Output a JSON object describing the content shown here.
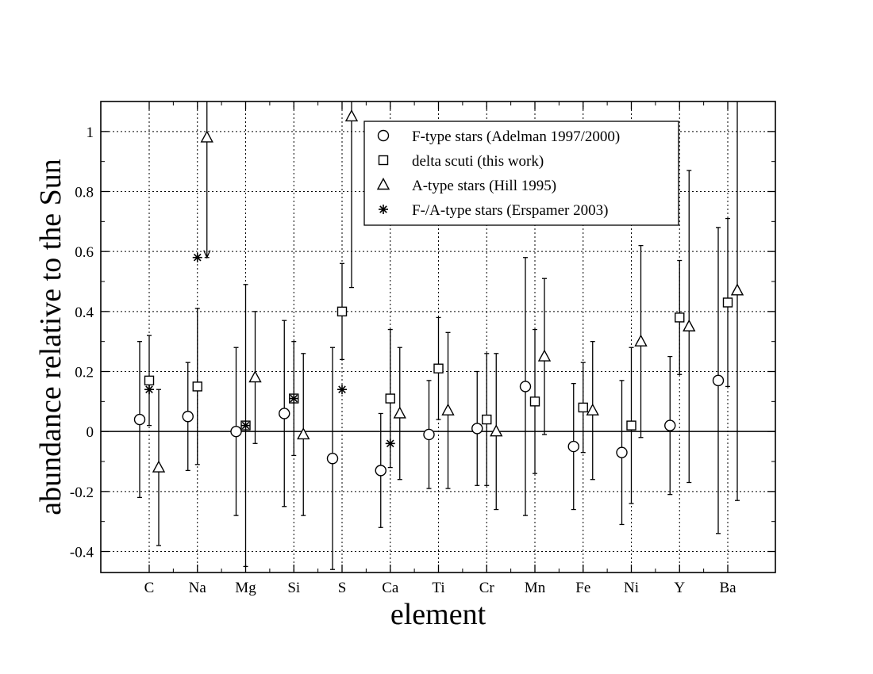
{
  "chart_data": {
    "type": "scatter",
    "xlabel": "element",
    "ylabel": "abundance relative to the Sun",
    "categories": [
      "C",
      "Na",
      "Mg",
      "Si",
      "S",
      "Ca",
      "Ti",
      "Cr",
      "Mn",
      "Fe",
      "Ni",
      "Y",
      "Ba"
    ],
    "ylim": [
      -0.47,
      1.1
    ],
    "yticks": [
      -0.4,
      -0.2,
      0,
      0.2,
      0.4,
      0.6,
      0.8,
      1
    ],
    "ytick_labels": [
      "-0.4",
      "-0.2",
      "0",
      "0.2",
      "0.4",
      "0.6",
      "0.8",
      "1"
    ],
    "grid": true,
    "zero_line": true,
    "legend_position": "top-right",
    "series": [
      {
        "name": "F-type stars (Adelman 1997/2000)",
        "marker": "circle",
        "offset": -0.2,
        "points": [
          {
            "category": "C",
            "y": 0.04,
            "ylo": -0.22,
            "yhi": 0.3
          },
          {
            "category": "Na",
            "y": 0.05,
            "ylo": -0.13,
            "yhi": 0.23
          },
          {
            "category": "Mg",
            "y": 0.0,
            "ylo": -0.28,
            "yhi": 0.28
          },
          {
            "category": "Si",
            "y": 0.06,
            "ylo": -0.25,
            "yhi": 0.37
          },
          {
            "category": "S",
            "y": -0.09,
            "ylo": -0.46,
            "yhi": 0.28
          },
          {
            "category": "Ca",
            "y": -0.13,
            "ylo": -0.32,
            "yhi": 0.06
          },
          {
            "category": "Ti",
            "y": -0.01,
            "ylo": -0.19,
            "yhi": 0.17
          },
          {
            "category": "Cr",
            "y": 0.01,
            "ylo": -0.18,
            "yhi": 0.2
          },
          {
            "category": "Mn",
            "y": 0.15,
            "ylo": -0.28,
            "yhi": 0.58
          },
          {
            "category": "Fe",
            "y": -0.05,
            "ylo": -0.26,
            "yhi": 0.16
          },
          {
            "category": "Ni",
            "y": -0.07,
            "ylo": -0.31,
            "yhi": 0.17
          },
          {
            "category": "Y",
            "y": 0.02,
            "ylo": -0.21,
            "yhi": 0.25
          },
          {
            "category": "Ba",
            "y": 0.17,
            "ylo": -0.34,
            "yhi": 0.68
          }
        ]
      },
      {
        "name": "delta scuti (this work)",
        "marker": "square",
        "offset": 0.0,
        "points": [
          {
            "category": "C",
            "y": 0.17,
            "ylo": 0.02,
            "yhi": 0.32
          },
          {
            "category": "Na",
            "y": 0.15,
            "ylo": -0.11,
            "yhi": 0.41
          },
          {
            "category": "Mg",
            "y": 0.02,
            "ylo": -0.45,
            "yhi": 0.49
          },
          {
            "category": "Si",
            "y": 0.11,
            "ylo": -0.08,
            "yhi": 0.3
          },
          {
            "category": "S",
            "y": 0.4,
            "ylo": 0.24,
            "yhi": 0.56
          },
          {
            "category": "Ca",
            "y": 0.11,
            "ylo": -0.12,
            "yhi": 0.34
          },
          {
            "category": "Ti",
            "y": 0.21,
            "ylo": 0.04,
            "yhi": 0.38
          },
          {
            "category": "Cr",
            "y": 0.04,
            "ylo": -0.18,
            "yhi": 0.26
          },
          {
            "category": "Mn",
            "y": 0.1,
            "ylo": -0.14,
            "yhi": 0.34
          },
          {
            "category": "Fe",
            "y": 0.08,
            "ylo": -0.07,
            "yhi": 0.23
          },
          {
            "category": "Ni",
            "y": 0.02,
            "ylo": -0.24,
            "yhi": 0.28
          },
          {
            "category": "Y",
            "y": 0.38,
            "ylo": 0.19,
            "yhi": 0.57
          },
          {
            "category": "Ba",
            "y": 0.43,
            "ylo": 0.15,
            "yhi": 0.71
          }
        ]
      },
      {
        "name": "A-type stars (Hill 1995)",
        "marker": "triangle",
        "offset": 0.2,
        "points": [
          {
            "category": "C",
            "y": -0.12,
            "ylo": -0.38,
            "yhi": 0.14
          },
          {
            "category": "Na",
            "y": 0.98,
            "ylo": 0.58,
            "yhi": 1.1,
            "upper_limit": true
          },
          {
            "category": "Mg",
            "y": 0.18,
            "ylo": -0.04,
            "yhi": 0.4
          },
          {
            "category": "Si",
            "y": -0.01,
            "ylo": -0.28,
            "yhi": 0.26
          },
          {
            "category": "S",
            "y": 1.05,
            "ylo": 0.48,
            "yhi": 1.1
          },
          {
            "category": "Ca",
            "y": 0.06,
            "ylo": -0.16,
            "yhi": 0.28
          },
          {
            "category": "Ti",
            "y": 0.07,
            "ylo": -0.19,
            "yhi": 0.33
          },
          {
            "category": "Cr",
            "y": 0.0,
            "ylo": -0.26,
            "yhi": 0.26
          },
          {
            "category": "Mn",
            "y": 0.25,
            "ylo": -0.01,
            "yhi": 0.51
          },
          {
            "category": "Fe",
            "y": 0.07,
            "ylo": -0.16,
            "yhi": 0.3
          },
          {
            "category": "Ni",
            "y": 0.3,
            "ylo": -0.02,
            "yhi": 0.62
          },
          {
            "category": "Y",
            "y": 0.35,
            "ylo": -0.17,
            "yhi": 0.87
          },
          {
            "category": "Ba",
            "y": 0.47,
            "ylo": -0.23,
            "yhi": 1.1
          }
        ]
      },
      {
        "name": "F-/A-type stars (Erspamer 2003)",
        "marker": "asterisk",
        "offset": 0.0,
        "points": [
          {
            "category": "C",
            "y": 0.14
          },
          {
            "category": "Na",
            "y": 0.58
          },
          {
            "category": "Mg",
            "y": 0.02
          },
          {
            "category": "Si",
            "y": 0.11
          },
          {
            "category": "S",
            "y": 0.14
          },
          {
            "category": "Ca",
            "y": -0.04
          }
        ]
      }
    ]
  }
}
